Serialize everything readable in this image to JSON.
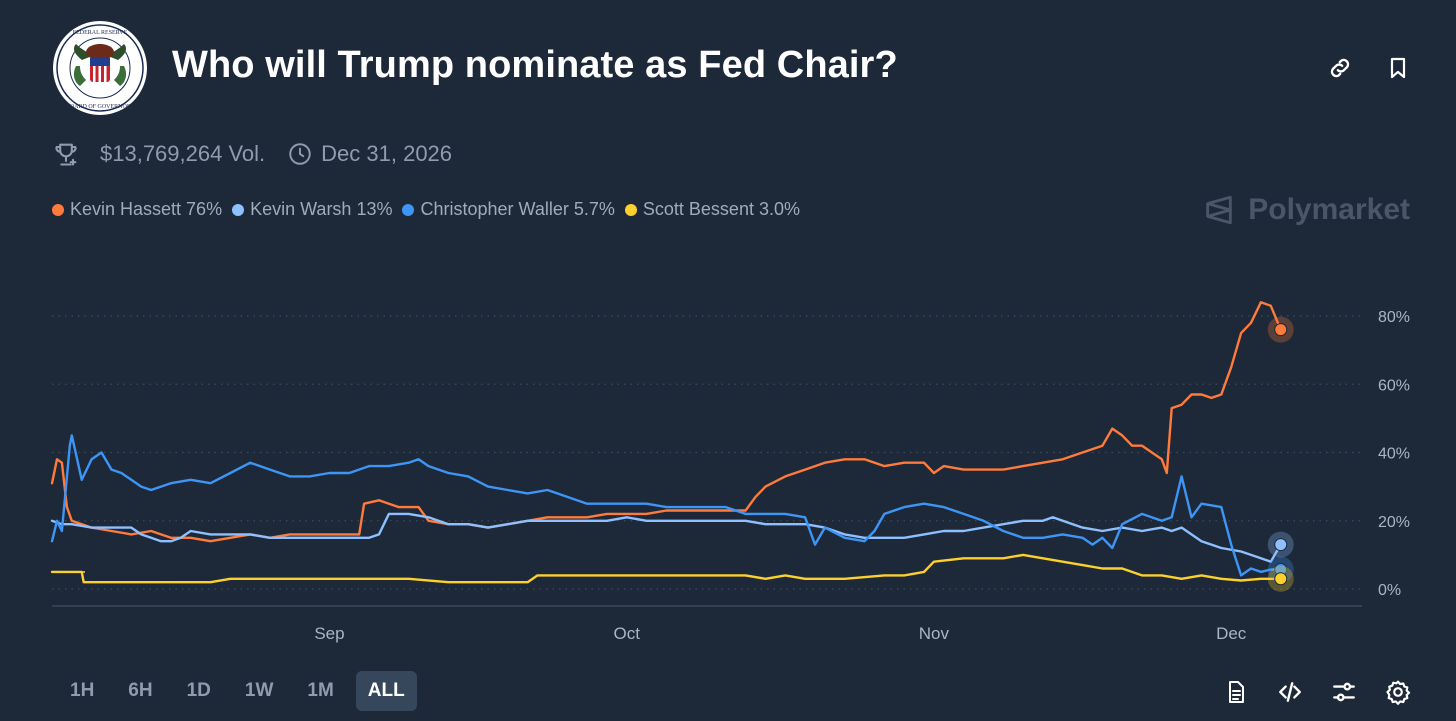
{
  "header": {
    "title": "Who will Trump nominate as Fed Chair?",
    "logo_text": "BOARD OF GOVERNORS OF THE FEDERAL RESERVE SYSTEM"
  },
  "meta": {
    "volume": "$13,769,264 Vol.",
    "end_date": "Dec 31, 2026"
  },
  "legend": [
    {
      "label": "Kevin Hassett 76%",
      "color": "#ff7b3b"
    },
    {
      "label": "Kevin Warsh 13%",
      "color": "#8ec0ff"
    },
    {
      "label": "Christopher Waller 5.7%",
      "color": "#3d95f5"
    },
    {
      "label": "Scott Bessent 3.0%",
      "color": "#fdd02b"
    }
  ],
  "brand": "Polymarket",
  "range_buttons": [
    "1H",
    "6H",
    "1D",
    "1W",
    "1M",
    "ALL"
  ],
  "active_range": "ALL",
  "icons": {
    "top": [
      "link-icon",
      "bookmark-icon"
    ],
    "meta": [
      "trophy-icon",
      "clock-icon"
    ],
    "bottom": [
      "document-icon",
      "embed-code-icon",
      "sliders-icon",
      "settings-icon"
    ]
  },
  "colors": {
    "background": "#1d2939",
    "grid": "#3a4a5e",
    "text_muted": "#8f9cae"
  },
  "chart_data": {
    "type": "line",
    "title": "Who will Trump nominate as Fed Chair?",
    "x_range": [
      0,
      132
    ],
    "x_ticks": [
      {
        "x": 28,
        "label": "Sep"
      },
      {
        "x": 58,
        "label": "Oct"
      },
      {
        "x": 89,
        "label": "Nov"
      },
      {
        "x": 119,
        "label": "Dec"
      }
    ],
    "ylim": [
      0,
      80
    ],
    "y_ticks": [
      {
        "v": 0,
        "label": "0%"
      },
      {
        "v": 20,
        "label": "20%"
      },
      {
        "v": 40,
        "label": "40%"
      },
      {
        "v": 60,
        "label": "60%"
      },
      {
        "v": 80,
        "label": "80%"
      }
    ],
    "grid": true,
    "series": [
      {
        "name": "Kevin Hassett",
        "color": "#ff7b3b",
        "last_label": "76%",
        "points": [
          [
            0,
            31
          ],
          [
            0.5,
            38
          ],
          [
            1,
            37
          ],
          [
            1.5,
            24
          ],
          [
            2,
            20
          ],
          [
            4,
            18
          ],
          [
            6,
            17
          ],
          [
            8,
            16
          ],
          [
            10,
            17
          ],
          [
            11,
            16
          ],
          [
            12,
            15
          ],
          [
            14,
            15
          ],
          [
            16,
            14
          ],
          [
            18,
            15
          ],
          [
            20,
            16
          ],
          [
            22,
            15
          ],
          [
            24,
            16
          ],
          [
            26,
            16
          ],
          [
            28,
            16
          ],
          [
            30,
            16
          ],
          [
            31,
            16
          ],
          [
            31.5,
            25
          ],
          [
            33,
            26
          ],
          [
            35,
            24
          ],
          [
            37,
            24
          ],
          [
            38,
            20
          ],
          [
            40,
            19
          ],
          [
            42,
            19
          ],
          [
            44,
            18
          ],
          [
            46,
            19
          ],
          [
            48,
            20
          ],
          [
            50,
            21
          ],
          [
            52,
            21
          ],
          [
            54,
            21
          ],
          [
            56,
            22
          ],
          [
            58,
            22
          ],
          [
            60,
            22
          ],
          [
            62,
            23
          ],
          [
            64,
            23
          ],
          [
            66,
            23
          ],
          [
            68,
            23
          ],
          [
            70,
            23
          ],
          [
            71,
            27
          ],
          [
            72,
            30
          ],
          [
            74,
            33
          ],
          [
            76,
            35
          ],
          [
            78,
            37
          ],
          [
            80,
            38
          ],
          [
            82,
            38
          ],
          [
            84,
            36
          ],
          [
            86,
            37
          ],
          [
            88,
            37
          ],
          [
            89,
            34
          ],
          [
            90,
            36
          ],
          [
            92,
            35
          ],
          [
            94,
            35
          ],
          [
            96,
            35
          ],
          [
            98,
            36
          ],
          [
            100,
            37
          ],
          [
            102,
            38
          ],
          [
            104,
            40
          ],
          [
            106,
            42
          ],
          [
            107,
            47
          ],
          [
            108,
            45
          ],
          [
            109,
            42
          ],
          [
            110,
            42
          ],
          [
            111,
            40
          ],
          [
            112,
            38
          ],
          [
            112.5,
            34
          ],
          [
            113,
            53
          ],
          [
            114,
            54
          ],
          [
            115,
            57
          ],
          [
            116,
            57
          ],
          [
            117,
            56
          ],
          [
            118,
            57
          ],
          [
            119,
            65
          ],
          [
            120,
            75
          ],
          [
            121,
            78
          ],
          [
            122,
            84
          ],
          [
            123,
            83
          ],
          [
            124,
            76
          ]
        ]
      },
      {
        "name": "Kevin Warsh",
        "color": "#8ec0ff",
        "last_label": "13%",
        "points": [
          [
            0,
            20
          ],
          [
            1,
            19
          ],
          [
            2,
            19
          ],
          [
            4,
            18
          ],
          [
            6,
            18
          ],
          [
            8,
            18
          ],
          [
            9,
            16
          ],
          [
            10,
            15
          ],
          [
            11,
            14
          ],
          [
            12,
            14
          ],
          [
            13,
            15
          ],
          [
            14,
            17
          ],
          [
            16,
            16
          ],
          [
            18,
            16
          ],
          [
            20,
            16
          ],
          [
            22,
            15
          ],
          [
            24,
            15
          ],
          [
            26,
            15
          ],
          [
            28,
            15
          ],
          [
            30,
            15
          ],
          [
            32,
            15
          ],
          [
            33,
            16
          ],
          [
            34,
            22
          ],
          [
            36,
            22
          ],
          [
            38,
            21
          ],
          [
            40,
            19
          ],
          [
            42,
            19
          ],
          [
            44,
            18
          ],
          [
            46,
            19
          ],
          [
            48,
            20
          ],
          [
            50,
            20
          ],
          [
            52,
            20
          ],
          [
            54,
            20
          ],
          [
            56,
            20
          ],
          [
            58,
            21
          ],
          [
            60,
            20
          ],
          [
            62,
            20
          ],
          [
            64,
            20
          ],
          [
            66,
            20
          ],
          [
            68,
            20
          ],
          [
            70,
            20
          ],
          [
            72,
            19
          ],
          [
            74,
            19
          ],
          [
            76,
            19
          ],
          [
            78,
            18
          ],
          [
            80,
            16
          ],
          [
            82,
            15
          ],
          [
            84,
            15
          ],
          [
            86,
            15
          ],
          [
            88,
            16
          ],
          [
            90,
            17
          ],
          [
            92,
            17
          ],
          [
            94,
            18
          ],
          [
            96,
            19
          ],
          [
            98,
            20
          ],
          [
            100,
            20
          ],
          [
            101,
            21
          ],
          [
            102,
            20
          ],
          [
            104,
            18
          ],
          [
            106,
            17
          ],
          [
            108,
            18
          ],
          [
            110,
            17
          ],
          [
            112,
            18
          ],
          [
            113,
            17
          ],
          [
            114,
            18
          ],
          [
            116,
            14
          ],
          [
            118,
            12
          ],
          [
            120,
            11
          ],
          [
            121,
            10
          ],
          [
            122,
            9
          ],
          [
            123,
            8
          ],
          [
            124,
            13
          ]
        ]
      },
      {
        "name": "Christopher Waller",
        "color": "#3d95f5",
        "last_label": "5.7%",
        "points": [
          [
            0,
            14
          ],
          [
            0.5,
            20
          ],
          [
            1,
            17
          ],
          [
            1.8,
            42
          ],
          [
            2,
            45
          ],
          [
            3,
            32
          ],
          [
            4,
            38
          ],
          [
            5,
            40
          ],
          [
            6,
            35
          ],
          [
            7,
            34
          ],
          [
            8,
            32
          ],
          [
            9,
            30
          ],
          [
            10,
            29
          ],
          [
            12,
            31
          ],
          [
            14,
            32
          ],
          [
            16,
            31
          ],
          [
            18,
            34
          ],
          [
            20,
            37
          ],
          [
            22,
            35
          ],
          [
            24,
            33
          ],
          [
            26,
            33
          ],
          [
            28,
            34
          ],
          [
            30,
            34
          ],
          [
            32,
            36
          ],
          [
            34,
            36
          ],
          [
            36,
            37
          ],
          [
            37,
            38
          ],
          [
            38,
            36
          ],
          [
            40,
            34
          ],
          [
            42,
            33
          ],
          [
            44,
            30
          ],
          [
            46,
            29
          ],
          [
            48,
            28
          ],
          [
            50,
            29
          ],
          [
            52,
            27
          ],
          [
            54,
            25
          ],
          [
            56,
            25
          ],
          [
            58,
            25
          ],
          [
            60,
            25
          ],
          [
            62,
            24
          ],
          [
            64,
            24
          ],
          [
            66,
            24
          ],
          [
            68,
            24
          ],
          [
            70,
            22
          ],
          [
            72,
            22
          ],
          [
            74,
            22
          ],
          [
            76,
            21
          ],
          [
            77,
            13
          ],
          [
            78,
            18
          ],
          [
            80,
            15
          ],
          [
            82,
            14
          ],
          [
            83,
            17
          ],
          [
            84,
            22
          ],
          [
            86,
            24
          ],
          [
            88,
            25
          ],
          [
            90,
            24
          ],
          [
            92,
            22
          ],
          [
            94,
            20
          ],
          [
            96,
            17
          ],
          [
            98,
            15
          ],
          [
            100,
            15
          ],
          [
            102,
            16
          ],
          [
            104,
            15
          ],
          [
            105,
            13
          ],
          [
            106,
            15
          ],
          [
            107,
            12
          ],
          [
            108,
            19
          ],
          [
            110,
            22
          ],
          [
            112,
            20
          ],
          [
            113,
            21
          ],
          [
            114,
            33
          ],
          [
            115,
            21
          ],
          [
            116,
            25
          ],
          [
            118,
            24
          ],
          [
            119,
            13
          ],
          [
            120,
            4
          ],
          [
            121,
            6
          ],
          [
            122,
            5
          ],
          [
            123,
            5.7
          ],
          [
            124,
            5.7
          ]
        ]
      },
      {
        "name": "Scott Bessent",
        "color": "#fdd02b",
        "last_label": "3.0%",
        "points": [
          [
            0,
            5
          ],
          [
            3,
            5
          ],
          [
            3.2,
            2
          ],
          [
            6,
            2
          ],
          [
            10,
            2
          ],
          [
            14,
            2
          ],
          [
            16,
            2
          ],
          [
            18,
            3
          ],
          [
            20,
            3
          ],
          [
            24,
            3
          ],
          [
            28,
            3
          ],
          [
            32,
            3
          ],
          [
            36,
            3
          ],
          [
            40,
            2
          ],
          [
            44,
            2
          ],
          [
            48,
            2
          ],
          [
            49,
            4
          ],
          [
            52,
            4
          ],
          [
            56,
            4
          ],
          [
            58,
            4
          ],
          [
            62,
            4
          ],
          [
            66,
            4
          ],
          [
            70,
            4
          ],
          [
            72,
            3
          ],
          [
            74,
            4
          ],
          [
            76,
            3
          ],
          [
            80,
            3
          ],
          [
            84,
            4
          ],
          [
            86,
            4
          ],
          [
            88,
            5
          ],
          [
            89,
            8
          ],
          [
            92,
            9
          ],
          [
            96,
            9
          ],
          [
            98,
            10
          ],
          [
            100,
            9
          ],
          [
            102,
            8
          ],
          [
            104,
            7
          ],
          [
            106,
            6
          ],
          [
            108,
            6
          ],
          [
            110,
            4
          ],
          [
            112,
            4
          ],
          [
            114,
            3
          ],
          [
            116,
            4
          ],
          [
            118,
            3
          ],
          [
            120,
            2.5
          ],
          [
            122,
            3
          ],
          [
            124,
            3
          ]
        ]
      }
    ]
  }
}
